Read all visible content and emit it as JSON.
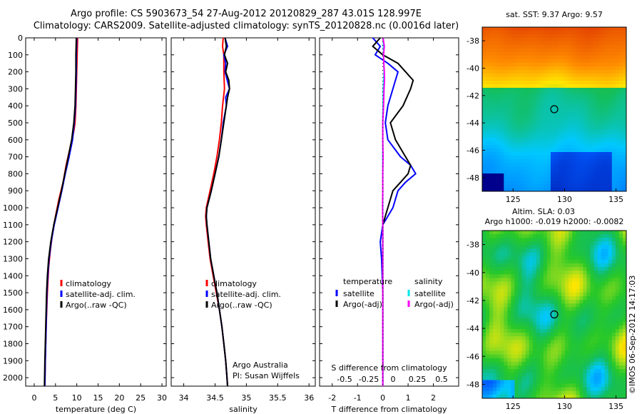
{
  "header": {
    "line1": "Argo profile: CS 5903673_54 27-Aug-2012 20120829_287 43.01S 128.997E",
    "line2": "Climatology: CARS2009. Satellite-adjusted climatology: synTS_20120828.nc (0.0016d later)"
  },
  "colors": {
    "climatology": "#ff0000",
    "satellite": "#0000ff",
    "argo": "#000000",
    "sal_satellite": "#00e5e5",
    "sal_argo": "#ff00ff"
  },
  "depth_ticks": [
    0,
    100,
    200,
    300,
    400,
    500,
    600,
    700,
    800,
    900,
    1000,
    1100,
    1200,
    1300,
    1400,
    1500,
    1600,
    1700,
    1800,
    1900,
    2000
  ],
  "chart_data": [
    {
      "id": "temperature",
      "type": "line",
      "xlabel": "temperature (deg C)",
      "xlim": [
        -2,
        31
      ],
      "ylim": [
        2050,
        0
      ],
      "xticks": [
        "0",
        "5",
        "10",
        "15",
        "20",
        "25",
        "30"
      ],
      "xtick_values": [
        0,
        5,
        10,
        15,
        20,
        25,
        30
      ],
      "legend": [
        "climatology",
        "satellite-adj. clim.",
        "Argo(..raw -QC)"
      ],
      "series": [
        {
          "name": "climatology",
          "color": "#ff0000",
          "depth": [
            0,
            100,
            200,
            300,
            400,
            500,
            550,
            650,
            750,
            850,
            950,
            1050,
            1150,
            1250,
            1350,
            1500,
            1700,
            1900,
            2050
          ],
          "values": [
            10.2,
            10.1,
            10.0,
            9.9,
            9.8,
            9.6,
            9.3,
            8.4,
            7.5,
            6.8,
            5.8,
            5.0,
            4.3,
            3.8,
            3.4,
            3.1,
            2.8,
            2.6,
            2.5
          ]
        },
        {
          "name": "satellite-adj. clim.",
          "color": "#0000ff",
          "depth": [
            0,
            100,
            200,
            300,
            400,
            500,
            600,
            700,
            800,
            900,
            1000,
            1100,
            1200,
            1300,
            1400,
            1500,
            1700,
            1900,
            2050
          ],
          "values": [
            10.0,
            9.9,
            9.9,
            9.8,
            9.7,
            9.4,
            9.0,
            8.2,
            7.3,
            6.5,
            5.6,
            4.7,
            4.0,
            3.5,
            3.2,
            3.0,
            2.8,
            2.6,
            2.5
          ]
        },
        {
          "name": "Argo(..raw -QC)",
          "color": "#000000",
          "depth": [
            0,
            100,
            200,
            300,
            400,
            500,
            600,
            700,
            800,
            900,
            1000,
            1100,
            1200,
            1300,
            1400,
            1500,
            1700,
            1900,
            2050
          ],
          "values": [
            9.9,
            9.8,
            9.8,
            9.7,
            9.6,
            9.3,
            8.8,
            8.0,
            7.2,
            6.4,
            5.5,
            4.6,
            3.9,
            3.4,
            3.1,
            2.9,
            2.7,
            2.5,
            2.4
          ]
        }
      ]
    },
    {
      "id": "salinity",
      "type": "line",
      "xlabel": "salinity",
      "xlim": [
        33.8,
        36.1
      ],
      "ylim": [
        2050,
        0
      ],
      "xticks": [
        "34",
        "34.5",
        "35",
        "35.5",
        "36"
      ],
      "xtick_values": [
        34,
        34.5,
        35,
        35.5,
        36
      ],
      "legend": [
        "climatology",
        "satellite-adj. clim.",
        "Argo(..raw -QC)"
      ],
      "credit": [
        "Argo Australia",
        "PI: Susan Wijffels"
      ],
      "series": [
        {
          "name": "climatology",
          "color": "#ff0000",
          "depth": [
            0,
            50,
            100,
            200,
            300,
            400,
            500,
            600,
            700,
            800,
            900,
            1000,
            1050,
            1100,
            1200,
            1300,
            1400,
            1500,
            1600,
            1700,
            1800,
            1900,
            2000,
            2050
          ],
          "values": [
            34.63,
            34.62,
            34.64,
            34.64,
            34.65,
            34.62,
            34.6,
            34.57,
            34.53,
            34.48,
            34.42,
            34.36,
            34.35,
            34.36,
            34.39,
            34.42,
            34.47,
            34.52,
            34.57,
            34.61,
            34.64,
            34.67,
            34.69,
            34.7
          ]
        },
        {
          "name": "satellite-adj. clim.",
          "color": "#0000ff",
          "depth": [
            0,
            50,
            100,
            150,
            200,
            300,
            350,
            400,
            500,
            600,
            700,
            800,
            900,
            1000,
            1050,
            1100,
            1200,
            1300,
            1400,
            1500,
            1600,
            1700,
            1800,
            1900,
            2000,
            2050
          ],
          "values": [
            34.66,
            34.7,
            34.64,
            34.67,
            34.66,
            34.73,
            34.67,
            34.68,
            34.63,
            34.6,
            34.56,
            34.5,
            34.44,
            34.37,
            34.36,
            34.37,
            34.4,
            34.43,
            34.48,
            34.53,
            34.57,
            34.61,
            34.64,
            34.67,
            34.69,
            34.7
          ]
        },
        {
          "name": "Argo(..raw -QC)",
          "color": "#000000",
          "depth": [
            0,
            50,
            100,
            150,
            200,
            250,
            300,
            350,
            400,
            500,
            600,
            700,
            800,
            900,
            1000,
            1050,
            1100,
            1200,
            1300,
            1400,
            1500,
            1600,
            1700,
            1800,
            1900,
            2000,
            2050
          ],
          "values": [
            34.66,
            34.68,
            34.65,
            34.7,
            34.67,
            34.72,
            34.73,
            34.7,
            34.68,
            34.64,
            34.6,
            34.56,
            34.5,
            34.44,
            34.37,
            34.36,
            34.37,
            34.4,
            34.43,
            34.48,
            34.53,
            34.57,
            34.61,
            34.64,
            34.67,
            34.69,
            34.7
          ]
        }
      ]
    },
    {
      "id": "differences",
      "type": "line",
      "xlabel": "T difference from climatology",
      "xlabel_top": "S difference from climatology",
      "xlim": [
        -2.5,
        3.0
      ],
      "ylim": [
        2050,
        0
      ],
      "xticks": [
        "-2",
        "-1",
        "0",
        "1",
        "2"
      ],
      "xtick_values": [
        -2,
        -1,
        0,
        1,
        2
      ],
      "top_ticks": [
        "-0.5",
        "-0.25",
        "0",
        "0.25",
        "0.5"
      ],
      "legend_temperature": {
        "heading": "temperature",
        "items": [
          "satellite",
          "Argo(-adj)"
        ]
      },
      "legend_salinity": {
        "heading": "salinity",
        "items": [
          "satellite",
          "Argo(-adj)"
        ]
      },
      "series": [
        {
          "name": "temperature satellite",
          "color": "#0000ff",
          "depth": [
            0,
            50,
            100,
            150,
            200,
            300,
            400,
            500,
            600,
            700,
            750,
            800,
            850,
            900,
            1000,
            1100,
            1200,
            1300,
            1500,
            1700,
            2050
          ],
          "values": [
            -0.4,
            -0.1,
            -0.3,
            0.2,
            0.6,
            0.4,
            0.2,
            0.1,
            0.2,
            0.7,
            1.1,
            1.3,
            0.9,
            0.6,
            0.4,
            0.0,
            -0.1,
            -0.05,
            0.0,
            0.0,
            0.0
          ]
        },
        {
          "name": "temperature Argo(-adj)",
          "color": "#000000",
          "depth": [
            0,
            50,
            100,
            150,
            200,
            250,
            300,
            400,
            500,
            600,
            700,
            750,
            800,
            850,
            900,
            1000,
            1100,
            1200,
            1300,
            1500,
            1700,
            2050
          ],
          "values": [
            -0.1,
            -0.4,
            0.0,
            0.6,
            0.9,
            1.2,
            1.1,
            0.8,
            0.3,
            0.5,
            0.9,
            1.1,
            1.0,
            0.7,
            0.4,
            0.2,
            0.0,
            0.0,
            0.0,
            0.0,
            0.0,
            0.0
          ]
        },
        {
          "name": "salinity satellite",
          "color": "#00e5e5",
          "depth": [
            0,
            100,
            200,
            300,
            400,
            500,
            600,
            700,
            800,
            900,
            1000,
            1100,
            1200,
            1400,
            1600,
            1800,
            2050
          ],
          "values": [
            0.02,
            0.03,
            0.05,
            0.02,
            0.01,
            0.0,
            0.0,
            0.0,
            0.0,
            0.0,
            0.0,
            0.0,
            0.0,
            0.0,
            0.0,
            0.0,
            0.0
          ]
        },
        {
          "name": "salinity Argo(-adj)",
          "color": "#ff00ff",
          "depth": [
            0,
            50,
            100,
            150,
            200,
            250,
            300,
            400,
            500,
            600,
            700,
            800,
            900,
            1000,
            1100,
            1200,
            1400,
            1600,
            1800,
            2050
          ],
          "values": [
            0.01,
            0.06,
            0.03,
            0.04,
            0.06,
            0.07,
            0.05,
            0.03,
            0.0,
            0.0,
            0.01,
            0.0,
            0.0,
            -0.01,
            0.0,
            0.0,
            0.0,
            0.0,
            0.0,
            0.0
          ]
        }
      ]
    },
    {
      "id": "sst-map",
      "type": "heatmap",
      "title": "sat. SST: 9.37  Argo: 9.57",
      "xlim": [
        122,
        136
      ],
      "ylim": [
        -49,
        -37
      ],
      "xticks": [
        "125",
        "130",
        "135"
      ],
      "xtick_values": [
        125,
        130,
        135
      ],
      "yticks": [
        "-38",
        "-40",
        "-42",
        "-44",
        "-46",
        "-48"
      ],
      "ytick_values": [
        -38,
        -40,
        -42,
        -44,
        -46,
        -48
      ],
      "marker": [
        129,
        -43
      ]
    },
    {
      "id": "sla-map",
      "type": "heatmap",
      "title_lines": [
        "Altim. SLA: 0.03",
        "Argo h1000: -0.019 h2000: -0.0082"
      ],
      "xlim": [
        122,
        136
      ],
      "ylim": [
        -49,
        -37
      ],
      "xticks": [
        "125",
        "130",
        "135"
      ],
      "xtick_values": [
        125,
        130,
        135
      ],
      "yticks": [
        "-38",
        "-40",
        "-42",
        "-44",
        "-46",
        "-48"
      ],
      "ytick_values": [
        -38,
        -40,
        -42,
        -44,
        -46,
        -48
      ],
      "marker": [
        129,
        -43
      ]
    }
  ],
  "footer": {
    "stamp": "©IMOS 06-Sep-2012 14:17:03"
  }
}
